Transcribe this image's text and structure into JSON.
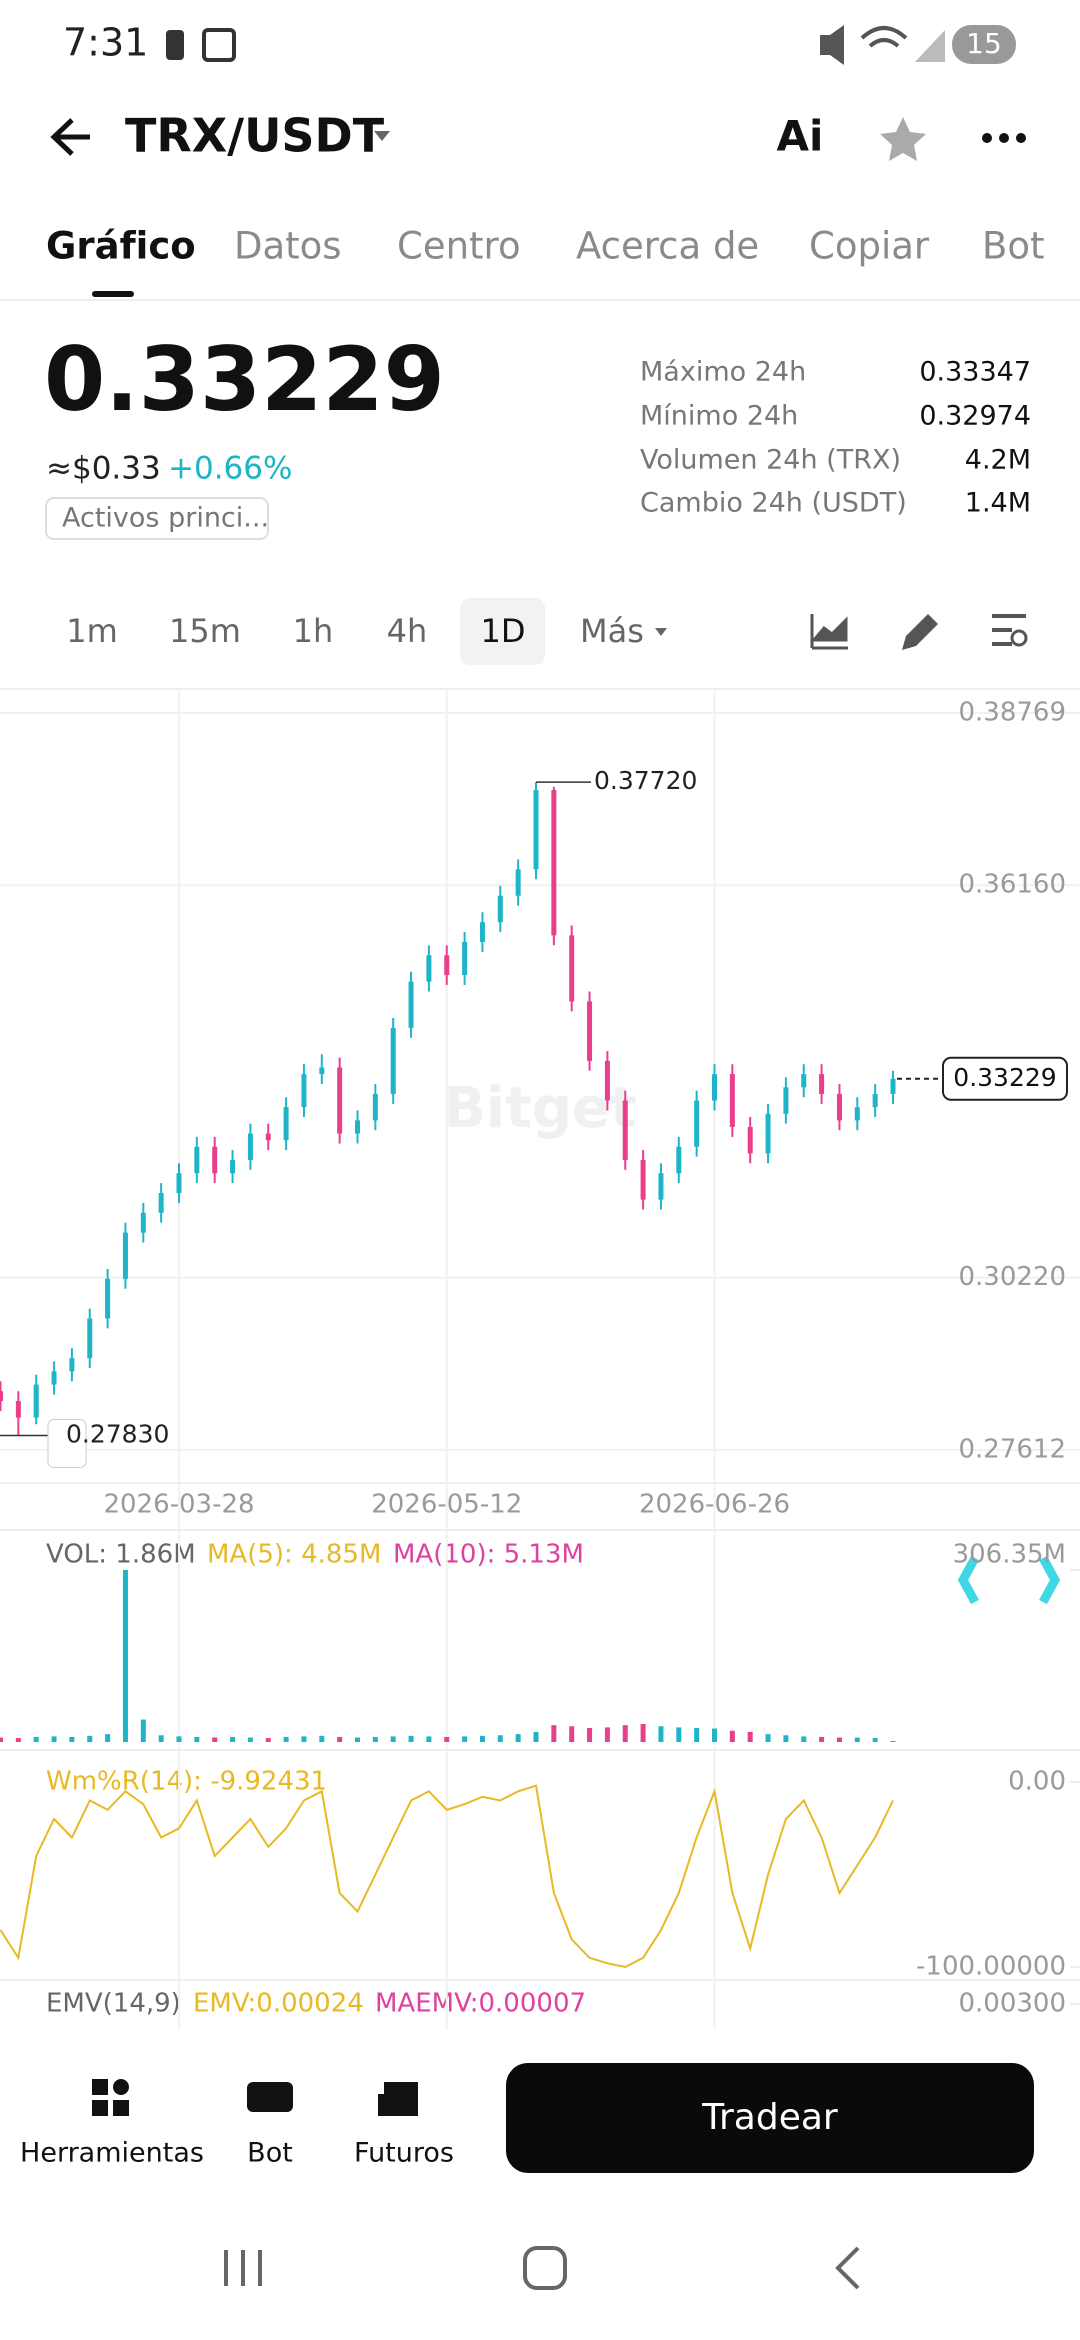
{
  "status_bar": {
    "time": "7:31",
    "battery": "15"
  },
  "header": {
    "title": "TRX/USDT",
    "ai": "Ai"
  },
  "tabs": [
    "Gráfico",
    "Datos",
    "Centro",
    "Acerca de",
    "Copiar",
    "Bot"
  ],
  "price": {
    "last": "0.33229",
    "usd": "≈$0.33",
    "change": "+0.66%",
    "tag": "Activos princi..."
  },
  "stats": [
    {
      "label": "Máximo 24h",
      "value": "0.33347"
    },
    {
      "label": "Mínimo 24h",
      "value": "0.32974"
    },
    {
      "label": "Volumen 24h (TRX)",
      "value": "4.2M"
    },
    {
      "label": "Cambio 24h (USDT)",
      "value": "1.4M"
    }
  ],
  "timeframes": [
    "1m",
    "15m",
    "1h",
    "4h",
    "1D",
    "Más"
  ],
  "chart_data": [
    {
      "type": "candlestick",
      "watermark": "Bitget",
      "up_color": "#1fb5c9",
      "down_color": "#e83e8c",
      "x": [
        "2026-02-26",
        "2026-03-01",
        "2026-03-04",
        "2026-03-07",
        "2026-03-10",
        "2026-03-13",
        "2026-03-16",
        "2026-03-19",
        "2026-03-22",
        "2026-03-25",
        "2026-03-28",
        "2026-03-31",
        "2026-04-03",
        "2026-04-06",
        "2026-04-09",
        "2026-04-12",
        "2026-04-15",
        "2026-04-18",
        "2026-04-21",
        "2026-04-24",
        "2026-04-27",
        "2026-04-30",
        "2026-05-03",
        "2026-05-06",
        "2026-05-09",
        "2026-05-12",
        "2026-05-15",
        "2026-05-18",
        "2026-05-21",
        "2026-05-24",
        "2026-05-27",
        "2026-05-30",
        "2026-06-02",
        "2026-06-05",
        "2026-06-08",
        "2026-06-11",
        "2026-06-14",
        "2026-06-17",
        "2026-06-20",
        "2026-06-23",
        "2026-06-26",
        "2026-06-29",
        "2026-07-02",
        "2026-07-05",
        "2026-07-08",
        "2026-07-11",
        "2026-07-14",
        "2026-07-17",
        "2026-07-20",
        "2026-07-23",
        "2026-07-26"
      ],
      "open": [
        0.285,
        0.2835,
        0.281,
        0.286,
        0.288,
        0.29,
        0.296,
        0.302,
        0.309,
        0.312,
        0.315,
        0.318,
        0.322,
        0.318,
        0.32,
        0.324,
        0.323,
        0.328,
        0.333,
        0.334,
        0.324,
        0.326,
        0.33,
        0.34,
        0.347,
        0.351,
        0.348,
        0.353,
        0.356,
        0.36,
        0.364,
        0.376,
        0.354,
        0.344,
        0.335,
        0.329,
        0.32,
        0.314,
        0.318,
        0.322,
        0.329,
        0.333,
        0.325,
        0.321,
        0.327,
        0.331,
        0.333,
        0.33,
        0.326,
        0.328,
        0.33
      ],
      "high": [
        0.2865,
        0.285,
        0.2875,
        0.2895,
        0.2915,
        0.2975,
        0.3035,
        0.3105,
        0.3135,
        0.3165,
        0.3195,
        0.3235,
        0.3235,
        0.3215,
        0.3255,
        0.3255,
        0.3295,
        0.3345,
        0.336,
        0.3355,
        0.3275,
        0.3315,
        0.3415,
        0.3485,
        0.3525,
        0.3525,
        0.3545,
        0.3575,
        0.3615,
        0.3655,
        0.3772,
        0.3765,
        0.3555,
        0.3455,
        0.3365,
        0.3305,
        0.3215,
        0.3195,
        0.3235,
        0.3305,
        0.3345,
        0.3345,
        0.3265,
        0.3285,
        0.3325,
        0.3345,
        0.3345,
        0.3315,
        0.3295,
        0.3315,
        0.3335
      ],
      "low": [
        0.282,
        0.2783,
        0.28,
        0.2845,
        0.2865,
        0.2885,
        0.2945,
        0.3005,
        0.3075,
        0.3105,
        0.3135,
        0.3165,
        0.3165,
        0.3165,
        0.3185,
        0.3215,
        0.3215,
        0.3265,
        0.3315,
        0.3225,
        0.3225,
        0.3245,
        0.3285,
        0.3385,
        0.3455,
        0.3465,
        0.3465,
        0.3515,
        0.3545,
        0.3585,
        0.3625,
        0.3525,
        0.3425,
        0.3335,
        0.3275,
        0.3185,
        0.3125,
        0.3125,
        0.3165,
        0.3205,
        0.3275,
        0.3235,
        0.3195,
        0.3195,
        0.3255,
        0.3295,
        0.3285,
        0.3245,
        0.3245,
        0.3265,
        0.3285
      ],
      "close": [
        0.2835,
        0.281,
        0.286,
        0.288,
        0.29,
        0.296,
        0.302,
        0.309,
        0.312,
        0.315,
        0.318,
        0.322,
        0.318,
        0.32,
        0.324,
        0.323,
        0.328,
        0.333,
        0.334,
        0.324,
        0.326,
        0.33,
        0.34,
        0.347,
        0.351,
        0.348,
        0.353,
        0.356,
        0.36,
        0.364,
        0.376,
        0.354,
        0.344,
        0.335,
        0.329,
        0.32,
        0.314,
        0.318,
        0.322,
        0.329,
        0.333,
        0.325,
        0.321,
        0.327,
        0.331,
        0.333,
        0.33,
        0.326,
        0.328,
        0.33,
        0.33229
      ],
      "high_label": "0.37720",
      "low_label": "0.27830",
      "last_label": "0.33229",
      "xticks": [
        "2026-03-28",
        "2026-05-12",
        "2026-06-26"
      ],
      "ylim": [
        0.2711,
        0.3913
      ],
      "yticks": [
        0.27612,
        {
          "value": 0.3022,
          "label": "0.30220"
        },
        {
          "value": 0.3616,
          "label": "0.36160"
        },
        0.38769
      ]
    },
    {
      "type": "bar",
      "legend": [
        "VOL: 1.86M",
        "MA(5): 4.85M",
        "MA(10): 5.13M"
      ],
      "values": [
        8,
        7,
        9,
        10,
        9,
        11,
        14,
        306.35,
        40,
        12,
        10,
        9,
        8,
        9,
        8,
        7,
        9,
        10,
        11,
        9,
        8,
        9,
        10,
        11,
        10,
        9,
        10,
        11,
        12,
        14,
        18,
        30,
        28,
        25,
        26,
        30,
        32,
        28,
        26,
        25,
        24,
        20,
        18,
        14,
        12,
        10,
        9,
        8,
        8,
        7,
        1.86
      ],
      "ylim": [
        0,
        306.35
      ],
      "yticks": [
        {
          "value": 306.35,
          "label": "306.35M"
        }
      ]
    },
    {
      "type": "line",
      "title": "Wm%R(14): -9.92431",
      "color": "#e8b923",
      "values": [
        -80,
        -95,
        -40,
        -20,
        -30,
        -10,
        -15,
        -5,
        -12,
        -30,
        -25,
        -10,
        -40,
        -30,
        -20,
        -35,
        -25,
        -10,
        -5,
        -60,
        -70,
        -50,
        -30,
        -10,
        -5,
        -15,
        -12,
        -8,
        -10,
        -5,
        -2,
        -60,
        -85,
        -95,
        -98,
        -100,
        -95,
        -80,
        -60,
        -30,
        -5,
        -60,
        -90,
        -50,
        -20,
        -10,
        -30,
        -60,
        -45,
        -30,
        -9.92431
      ],
      "ylim": [
        -100,
        0
      ],
      "yticks": [
        {
          "value": 0,
          "label": "0.00"
        },
        {
          "value": -100,
          "label": "-100.00000"
        }
      ]
    },
    {
      "type": "indicator",
      "legend": [
        "EMV(14,9)",
        "EMV:0.00024",
        "MAEMV:0.00007"
      ],
      "yticks": [
        {
          "value": 0.003,
          "label": "0.00300"
        }
      ]
    }
  ],
  "bottom_bar": {
    "tools": [
      "Herramientas",
      "Bot",
      "Futuros"
    ],
    "trade": "Tradear"
  }
}
